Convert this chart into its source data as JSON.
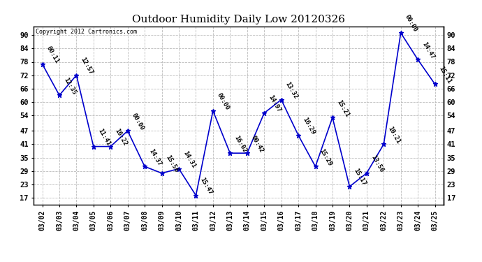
{
  "title": "Outdoor Humidity Daily Low 20120326",
  "copyright": "Copyright 2012 Cartronics.com",
  "x_labels": [
    "03/02",
    "03/03",
    "03/04",
    "03/05",
    "03/06",
    "03/07",
    "03/08",
    "03/09",
    "03/10",
    "03/11",
    "03/12",
    "03/13",
    "03/14",
    "03/15",
    "03/16",
    "03/17",
    "03/18",
    "03/19",
    "03/20",
    "03/21",
    "03/22",
    "03/23",
    "03/24",
    "03/25"
  ],
  "y_values": [
    77,
    63,
    72,
    40,
    40,
    47,
    31,
    28,
    30,
    18,
    56,
    37,
    37,
    55,
    61,
    45,
    31,
    53,
    22,
    28,
    41,
    91,
    79,
    68
  ],
  "annotations": [
    "00:11",
    "12:35",
    "12:57",
    "11:41",
    "16:22",
    "00:00",
    "14:37",
    "15:56",
    "14:31",
    "15:47",
    "00:00",
    "16:02",
    "00:42",
    "14:97",
    "13:32",
    "16:29",
    "15:29",
    "15:21",
    "15:17",
    "13:56",
    "10:21",
    "00:00",
    "14:47",
    "15:11"
  ],
  "ylim": [
    14,
    94
  ],
  "yticks": [
    17,
    23,
    29,
    35,
    41,
    47,
    54,
    60,
    66,
    72,
    78,
    84,
    90
  ],
  "line_color": "#0000cc",
  "marker_color": "#0000cc",
  "bg_color": "#ffffff",
  "grid_color": "#bbbbbb",
  "title_fontsize": 11,
  "annot_fontsize": 6.5,
  "xlabel_fontsize": 7,
  "ylabel_fontsize": 7.5
}
